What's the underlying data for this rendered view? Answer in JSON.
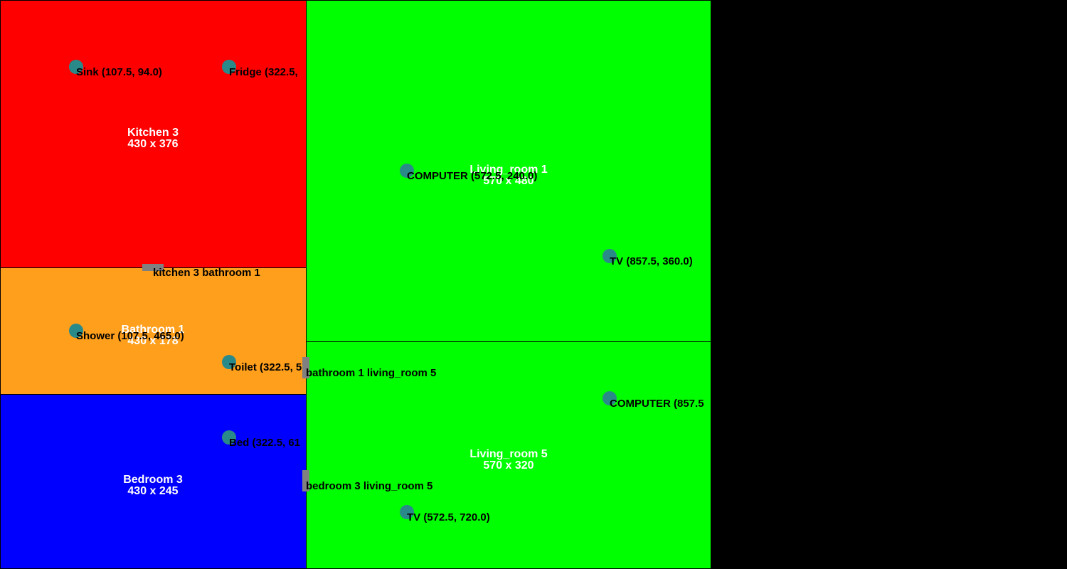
{
  "colors": {
    "kitchen": "#ff0000",
    "bathroom": "#ff9f1c",
    "bedroom": "#0000ff",
    "living_room": "#00ff00",
    "door": "#808080",
    "item": "#2a8a8a",
    "background": "#000000"
  },
  "rooms": {
    "kitchen": {
      "name": "Kitchen 3",
      "size": "430 x 376"
    },
    "bathroom": {
      "name": "Bathroom 1",
      "size": "430 x 178"
    },
    "bedroom": {
      "name": "Bedroom 3",
      "size": "430 x 245"
    },
    "living1": {
      "name": "Living_room 1",
      "size": "570 x 480"
    },
    "living5": {
      "name": "Living_room 5",
      "size": "570 x 320"
    }
  },
  "doors": {
    "kitchen_bathroom": "kitchen 3 bathroom 1",
    "bathroom_living": "bathroom 1 living_room 5",
    "bedroom_living": "bedroom 3 living_room 5"
  },
  "items": {
    "sink": "Sink (107.5, 94.0)",
    "fridge": "Fridge (322.5,",
    "shower": "Shower (107.5, 465.0)",
    "toilet": "Toilet (322.5, 5",
    "bed": "Bed (322.5, 61",
    "computer1": "COMPUTER (572.5, 240.0)",
    "tv1": "TV (857.5, 360.0)",
    "computer5": "COMPUTER (857.5",
    "tv5": "TV (572.5, 720.0)"
  }
}
